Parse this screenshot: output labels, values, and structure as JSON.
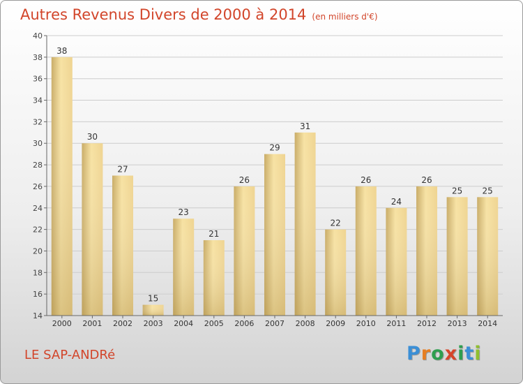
{
  "header": {
    "title": "Autres Revenus Divers de 2000 à 2014",
    "subtitle": "(en milliers d'€)"
  },
  "footer": {
    "location": "LE SAP-ANDRé",
    "brand_letters": [
      {
        "ch": "P",
        "color": "#3b8fd6"
      },
      {
        "ch": "r",
        "color": "#e67e22"
      },
      {
        "ch": "o",
        "color": "#2e9e4f"
      },
      {
        "ch": "x",
        "color": "#d6452a"
      },
      {
        "ch": "i",
        "color": "#2e9e4f"
      },
      {
        "ch": "t",
        "color": "#3b8fd6"
      },
      {
        "ch": "i",
        "color": "#8fbf2f"
      }
    ]
  },
  "colors": {
    "title": "#d2452a",
    "bar_light": "#f7e2a3",
    "bar_dark": "#c9ac67",
    "grid": "#cccccc"
  },
  "chart_data": {
    "type": "bar",
    "categories": [
      "2000",
      "2001",
      "2002",
      "2003",
      "2004",
      "2005",
      "2006",
      "2007",
      "2008",
      "2009",
      "2010",
      "2011",
      "2012",
      "2013",
      "2014"
    ],
    "values": [
      38,
      30,
      27,
      15,
      23,
      21,
      26,
      29,
      31,
      22,
      26,
      24,
      26,
      25,
      25
    ],
    "ylim": [
      14,
      40
    ],
    "yticks": [
      14,
      16,
      18,
      20,
      22,
      24,
      26,
      28,
      30,
      32,
      34,
      36,
      38,
      40
    ],
    "xlabel": "",
    "ylabel": "",
    "grid": true,
    "data_labels": true
  }
}
